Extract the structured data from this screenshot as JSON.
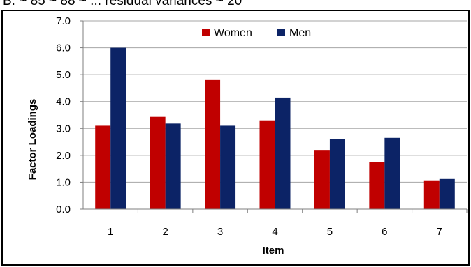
{
  "header_text": "B: ~ 85 ~ 88 ~ ... residual variances ~ 20",
  "chart_data": {
    "type": "bar",
    "title": "",
    "xlabel": "Item",
    "ylabel": "Factor Loadings",
    "categories": [
      "1",
      "2",
      "3",
      "4",
      "5",
      "6",
      "7"
    ],
    "ylim": [
      0,
      7
    ],
    "yticks": [
      "0.0",
      "1.0",
      "2.0",
      "3.0",
      "4.0",
      "5.0",
      "6.0",
      "7.0"
    ],
    "grid": true,
    "legend_position": "top-center",
    "series": [
      {
        "name": "Women",
        "color": "#c00000",
        "values": [
          3.1,
          3.43,
          4.8,
          3.3,
          2.2,
          1.75,
          1.07
        ]
      },
      {
        "name": "Men",
        "color": "#0c2366",
        "values": [
          6.0,
          3.18,
          3.1,
          4.15,
          2.6,
          2.65,
          1.12
        ]
      }
    ]
  }
}
